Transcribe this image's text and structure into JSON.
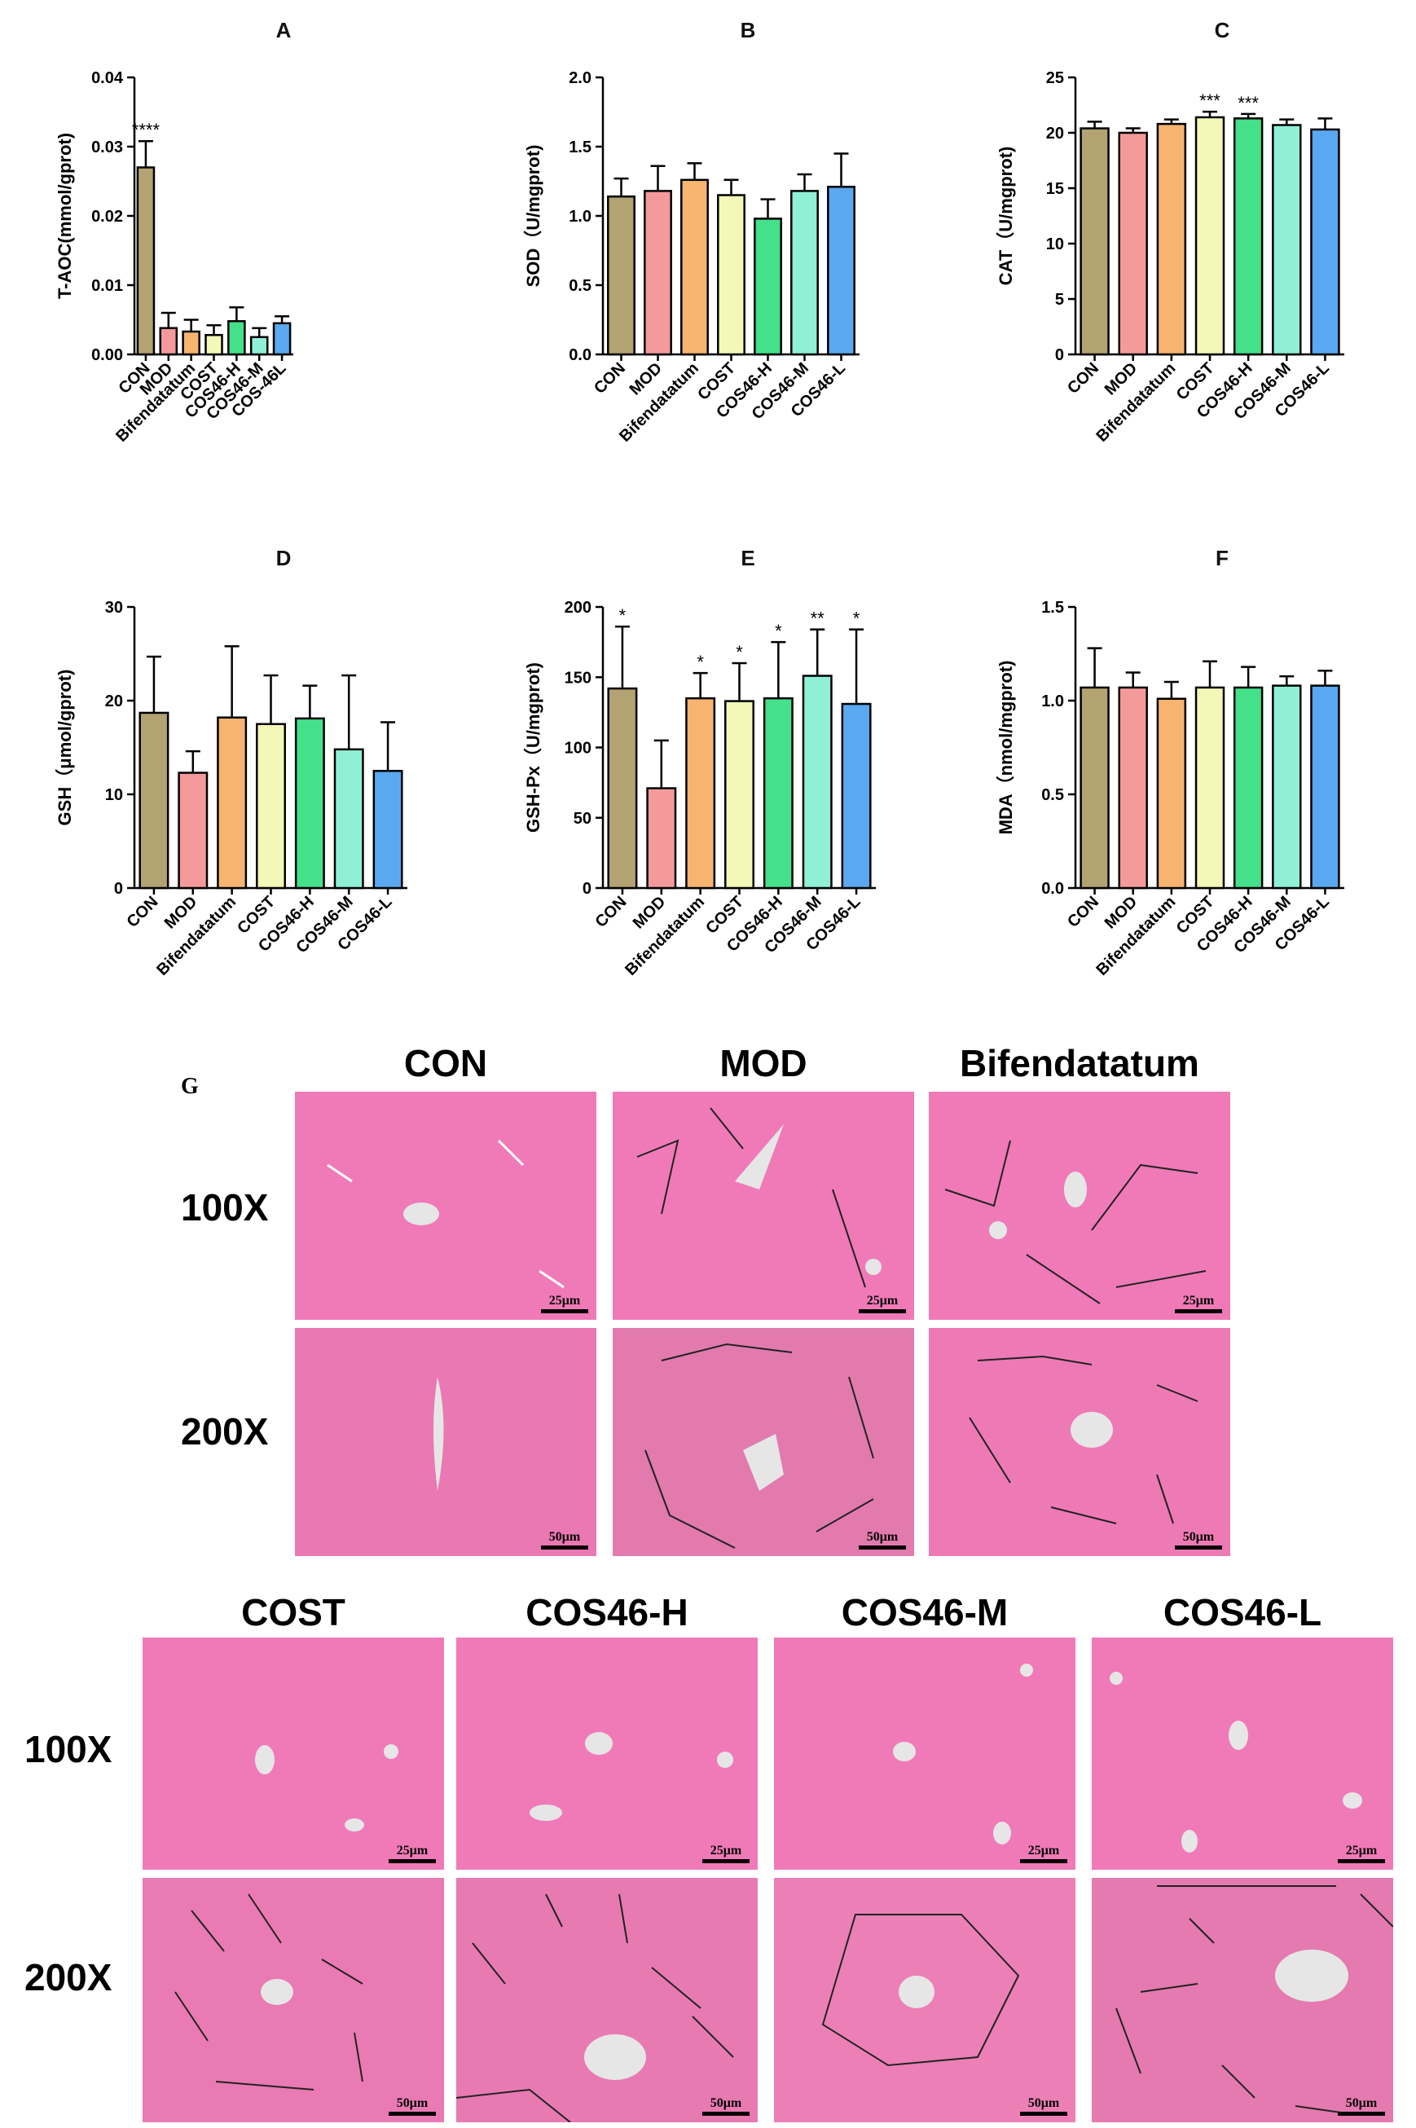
{
  "chart_data": [
    {
      "panel": "A",
      "type": "bar",
      "ylabel": "T-AOC(mmol/gprot)",
      "ylim": [
        0,
        0.04
      ],
      "yticks": [
        "0.00",
        "0.01",
        "0.02",
        "0.03",
        "0.04"
      ],
      "ytick_values": [
        0,
        0.01,
        0.02,
        0.03,
        0.04
      ],
      "categories": [
        "CON",
        "MOD",
        "Bifendatatum",
        "COST",
        "COS46-H",
        "COS46-M",
        "COS-46L"
      ],
      "values": [
        0.027,
        0.0038,
        0.0033,
        0.0028,
        0.0048,
        0.0025,
        0.0045
      ],
      "errors": [
        0.0038,
        0.0022,
        0.0017,
        0.0014,
        0.002,
        0.0013,
        0.001
      ],
      "significance": [
        "****",
        "",
        "",
        "",
        "",
        "",
        ""
      ]
    },
    {
      "panel": "B",
      "type": "bar",
      "ylabel": "SOD（U/mgprot)",
      "ylim": [
        0,
        2.0
      ],
      "yticks": [
        "0.0",
        "0.5",
        "1.0",
        "1.5",
        "2.0"
      ],
      "ytick_values": [
        0,
        0.5,
        1.0,
        1.5,
        2.0
      ],
      "categories": [
        "CON",
        "MOD",
        "Bifendatatum",
        "COST",
        "COS46-H",
        "COS46-M",
        "COS46-L"
      ],
      "values": [
        1.14,
        1.18,
        1.26,
        1.15,
        0.98,
        1.18,
        1.21
      ],
      "errors": [
        0.13,
        0.18,
        0.12,
        0.11,
        0.14,
        0.12,
        0.24
      ],
      "significance": [
        "",
        "",
        "",
        "",
        "",
        "",
        ""
      ]
    },
    {
      "panel": "C",
      "type": "bar",
      "ylabel": "CAT（U/mgprot)",
      "ylim": [
        0,
        25
      ],
      "yticks": [
        "0",
        "5",
        "10",
        "15",
        "20",
        "25"
      ],
      "ytick_values": [
        0,
        5,
        10,
        15,
        20,
        25
      ],
      "categories": [
        "CON",
        "MOD",
        "Bifendatatum",
        "COST",
        "COS46-H",
        "COS46-M",
        "COS46-L"
      ],
      "values": [
        20.4,
        20.0,
        20.8,
        21.4,
        21.3,
        20.7,
        20.3
      ],
      "errors": [
        0.6,
        0.4,
        0.4,
        0.5,
        0.4,
        0.5,
        1.0
      ],
      "significance": [
        "",
        "",
        "",
        "***",
        "***",
        "",
        ""
      ]
    },
    {
      "panel": "D",
      "type": "bar",
      "ylabel": "GSH（μmol/gprot)",
      "ylim": [
        0,
        30
      ],
      "yticks": [
        "0",
        "10",
        "20",
        "30"
      ],
      "ytick_values": [
        0,
        10,
        20,
        30
      ],
      "categories": [
        "CON",
        "MOD",
        "Bifendatatum",
        "COST",
        "COS46-H",
        "COS46-M",
        "COS46-L"
      ],
      "values": [
        18.7,
        12.3,
        18.2,
        17.5,
        18.1,
        14.8,
        12.5
      ],
      "errors": [
        6.0,
        2.3,
        7.6,
        5.2,
        3.5,
        7.9,
        5.2
      ],
      "significance": [
        "",
        "",
        "",
        "",
        "",
        "",
        ""
      ]
    },
    {
      "panel": "E",
      "type": "bar",
      "ylabel": "GSH-Px（U/mgprot)",
      "ylim": [
        0,
        200
      ],
      "yticks": [
        "0",
        "50",
        "100",
        "150",
        "200"
      ],
      "ytick_values": [
        0,
        50,
        100,
        150,
        200
      ],
      "categories": [
        "CON",
        "MOD",
        "Bifendatatum",
        "COST",
        "COS46-H",
        "COS46-M",
        "COS46-L"
      ],
      "values": [
        142,
        71,
        135,
        133,
        135,
        151,
        131
      ],
      "errors": [
        44,
        34,
        18,
        27,
        40,
        33,
        53
      ],
      "significance": [
        "*",
        "",
        "*",
        "*",
        "*",
        "**",
        "*"
      ]
    },
    {
      "panel": "F",
      "type": "bar",
      "ylabel": "MDA（nmol/mgprot)",
      "ylim": [
        0,
        1.5
      ],
      "yticks": [
        "0.0",
        "0.5",
        "1.0",
        "1.5"
      ],
      "ytick_values": [
        0,
        0.5,
        1.0,
        1.5
      ],
      "categories": [
        "CON",
        "MOD",
        "Bifendatatum",
        "COST",
        "COS46-H",
        "COS46-M",
        "COS46-L"
      ],
      "values": [
        1.07,
        1.07,
        1.01,
        1.07,
        1.07,
        1.08,
        1.08
      ],
      "errors": [
        0.21,
        0.08,
        0.09,
        0.14,
        0.11,
        0.05,
        0.08
      ],
      "significance": [
        "",
        "",
        "",
        "",
        "",
        "",
        ""
      ]
    }
  ],
  "bar_colors": [
    "#b3a272",
    "#f59a9a",
    "#f7b470",
    "#f3f8b8",
    "#44e08a",
    "#8ff0d6",
    "#5aa8f0"
  ],
  "histology": {
    "panel_letter": "G",
    "top_groups": [
      "CON",
      "MOD",
      "Bifendatatum"
    ],
    "bottom_groups": [
      "COST",
      "COS46-H",
      "COS46-M",
      "COS46-L"
    ],
    "row_labels": [
      "100X",
      "200X"
    ],
    "scale_100x": "25μm",
    "scale_200x": "50μm"
  }
}
